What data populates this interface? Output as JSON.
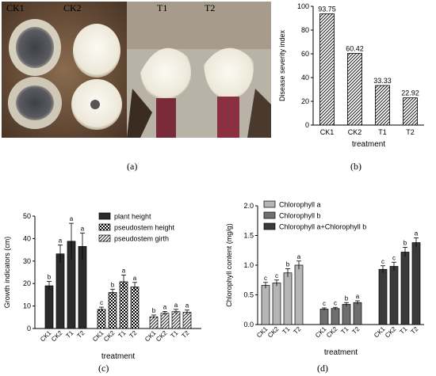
{
  "panel_labels": [
    "(a)",
    "(b)",
    "(c)",
    "(d)"
  ],
  "photo": {
    "labels": [
      "CK1",
      "CK2",
      "T1",
      "T2"
    ]
  },
  "chart_data": [
    {
      "type": "bar",
      "ylabel": "Disease severity index",
      "xlabel": "treatment",
      "categories": [
        "CK1",
        "CK2",
        "T1",
        "T2"
      ],
      "values": [
        93.75,
        60.42,
        33.33,
        22.92
      ],
      "value_labels": [
        "93.75",
        "60.42",
        "33.33",
        "22.92"
      ],
      "ylim": [
        0,
        100
      ],
      "yticks": [
        "0",
        "20",
        "40",
        "60",
        "80",
        "100"
      ],
      "fill": "diagonal-hatch"
    },
    {
      "type": "bar",
      "ylabel": "Growth indicators (cm)",
      "xlabel": "treatment",
      "ylim": [
        0,
        50
      ],
      "yticks": [
        "0",
        "10",
        "20",
        "30",
        "40",
        "50"
      ],
      "legend_position": "top-right",
      "groups": [
        {
          "name": "plant height",
          "fill": "#2b2b2b",
          "categories": [
            "CK1",
            "CK2",
            "T1",
            "T2"
          ],
          "values": [
            19,
            33.2,
            38.8,
            36.5
          ],
          "errors": [
            2,
            4,
            8,
            6
          ],
          "letters": [
            "b",
            "a",
            "a",
            "a"
          ]
        },
        {
          "name": "pseudostem height",
          "fill": "checker",
          "categories": [
            "CK1",
            "CK2",
            "T1",
            "T2"
          ],
          "values": [
            8.5,
            16,
            20.8,
            18.5
          ],
          "errors": [
            1,
            1.5,
            3,
            2
          ],
          "letters": [
            "c",
            "b",
            "a",
            "a"
          ]
        },
        {
          "name": "pseudostem girth",
          "fill": "diagonal-hatch",
          "categories": [
            "CK1",
            "CK2",
            "T1",
            "T2"
          ],
          "values": [
            5.2,
            6.8,
            7.5,
            7.2
          ],
          "errors": [
            0.8,
            0.8,
            1,
            1
          ],
          "letters": [
            "b",
            "a",
            "a",
            "a"
          ]
        }
      ]
    },
    {
      "type": "bar",
      "ylabel": "Chlorophyll content (mg/g)",
      "xlabel": "treatment",
      "ylim": [
        0,
        2.0
      ],
      "yticks": [
        "0.0",
        "0.5",
        "1.0",
        "1.5",
        "2.0"
      ],
      "legend_position": "top-left",
      "groups": [
        {
          "name": "Chlorophyll a",
          "fill": "#b5b5b5",
          "categories": [
            "CK1",
            "CK2",
            "T1",
            "T2"
          ],
          "values": [
            0.66,
            0.7,
            0.87,
            1.0
          ],
          "errors": [
            0.05,
            0.05,
            0.07,
            0.07
          ],
          "letters": [
            "c",
            "c",
            "b",
            "a"
          ]
        },
        {
          "name": "Chlorophyll b",
          "fill": "#6f6f6f",
          "categories": [
            "CK1",
            "CK2",
            "T1",
            "T2"
          ],
          "values": [
            0.26,
            0.27,
            0.34,
            0.37
          ],
          "errors": [
            0.02,
            0.02,
            0.03,
            0.03
          ],
          "letters": [
            "c",
            "c",
            "b",
            "a"
          ]
        },
        {
          "name": "Chlorophyll a+Chlorophyll b",
          "fill": "#3a3a3a",
          "categories": [
            "CK1",
            "CK2",
            "T1",
            "T2"
          ],
          "values": [
            0.93,
            0.98,
            1.22,
            1.38
          ],
          "errors": [
            0.06,
            0.07,
            0.08,
            0.08
          ],
          "letters": [
            "c",
            "c",
            "b",
            "a"
          ]
        }
      ]
    }
  ]
}
